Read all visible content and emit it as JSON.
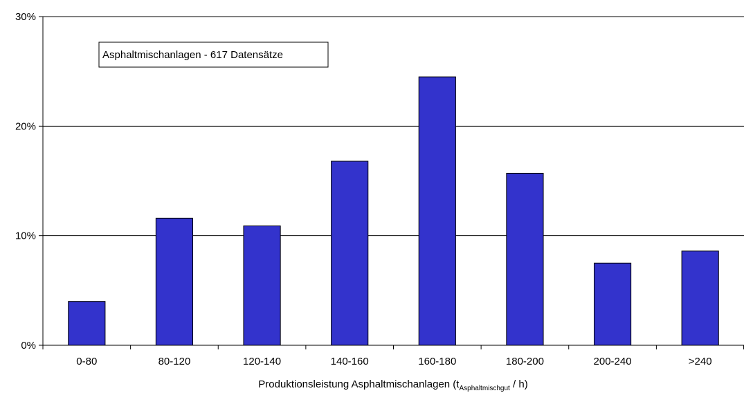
{
  "chart_data": {
    "type": "bar",
    "categories": [
      "0-80",
      "80-120",
      "120-140",
      "140-160",
      "160-180",
      "180-200",
      "200-240",
      ">240"
    ],
    "values": [
      4.0,
      11.6,
      10.9,
      16.8,
      24.5,
      15.7,
      7.5,
      8.6
    ],
    "ylim": [
      0,
      30
    ],
    "yticks": [
      "0%",
      "10%",
      "20%",
      "30%"
    ],
    "xlabel_main": "Produktionsleistung Asphaltmischanlagen (t",
    "xlabel_sub": "Asphaltmischgut",
    "xlabel_end": " / h)",
    "annotation": "Asphaltmischanlagen - 617 Datensätze",
    "grid": true,
    "bar_color": "#3333cc"
  }
}
